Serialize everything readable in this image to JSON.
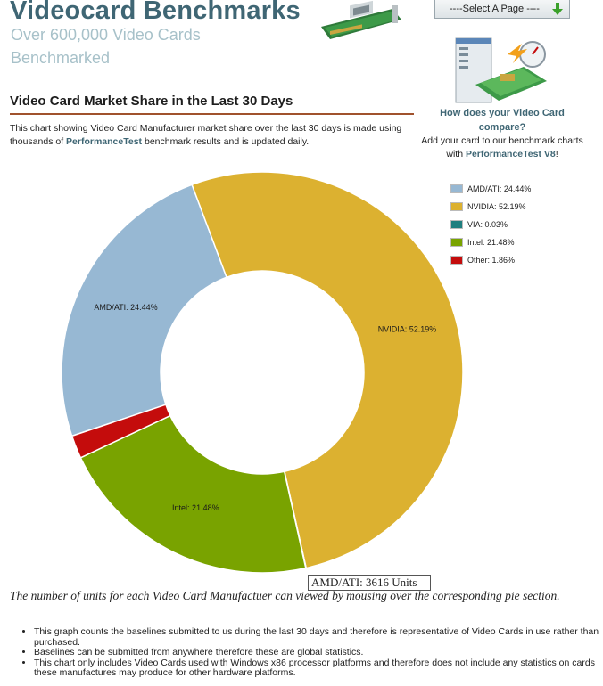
{
  "header": {
    "title": "Videocard Benchmarks",
    "subtitle": "Over 600,000 Video Cards Benchmarked",
    "page_select": "----Select A Page ----"
  },
  "section": {
    "heading": "Video Card Market Share in the Last 30 Days",
    "intro_before": "This chart showing Video Card Manufacturer market share over the last 30 days is made using thousands of ",
    "intro_link": "PerformanceTest",
    "intro_after": " benchmark results and is updated daily."
  },
  "promo": {
    "title": "How does your Video Card compare?",
    "text_before": "Add your card to our benchmark charts with ",
    "link": "PerformanceTest V8",
    "text_after": "!"
  },
  "chart_data": {
    "type": "pie",
    "donut": true,
    "categories": [
      "AMD/ATI",
      "NVIDIA",
      "VIA",
      "Intel",
      "Other"
    ],
    "values": [
      24.44,
      52.19,
      0.03,
      21.48,
      1.86
    ],
    "value_labels": [
      "AMD/ATI: 24.44%",
      "NVIDIA: 52.19%",
      "VIA: 0.03%",
      "Intel: 21.48%",
      "Other: 1.86%"
    ],
    "slice_labels": [
      "AMD/ATI: 24.44%",
      "NVIDIA: 52.19%",
      "",
      "Intel: 21.48%",
      ""
    ],
    "colors": [
      "#97b8d3",
      "#dcb130",
      "#1f7f7f",
      "#79a300",
      "#c40c0c"
    ],
    "legend_position": "top-right",
    "tooltip": "AMD/ATI: 3616 Units"
  },
  "note": "The number of units for each Video Card Manufactuer can viewed by mousing over the corresponding pie section.",
  "facts": [
    "This graph counts the baselines submitted to us during the last 30 days and therefore is representative of Video Cards in use rather than purchased.",
    "Baselines can be submitted from anywhere therefore these are global statistics.",
    "This chart only includes Video Cards used with Windows x86 processor platforms and therefore does not include any statistics on cards these manufactures may produce for other hardware platforms."
  ]
}
